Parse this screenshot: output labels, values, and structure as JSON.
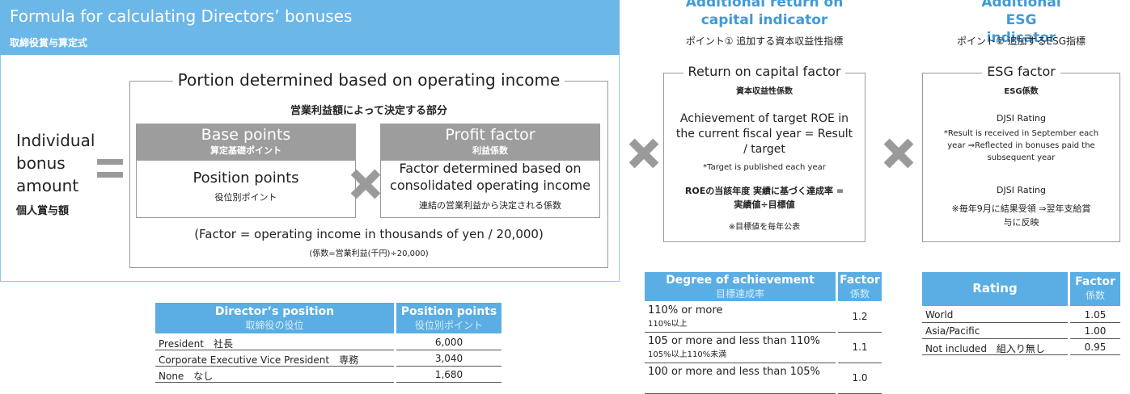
{
  "formula": {
    "title": "Formula for calculating Directors’ bonuses",
    "subtitle": "取締役賞与算定式",
    "left": {
      "label": "Individual bonus amount",
      "sublabel": "個人賞与額"
    },
    "portion": {
      "title": "Portion determined based on operating income",
      "subtitle": "営業利益額によって決定する部分",
      "base": {
        "title": "Base points",
        "subtitle": "算定基礎ポイント",
        "body": "Position points",
        "body_sub": "役位別ポイント"
      },
      "profit": {
        "title": "Profit factor",
        "subtitle": "利益係数",
        "body": "Factor determined based on consolidated operating income",
        "body_sub": "連結の営業利益から決定される係数"
      },
      "note": "(Factor = operating income in thousands of yen / 20,000)",
      "note_sub": "(係数=営業利益(千円)÷20,000)"
    }
  },
  "position_table": {
    "headers": [
      [
        "Director’s position",
        "取締役の役位"
      ],
      [
        "Position points",
        "役位別ポイント"
      ]
    ],
    "rows": [
      [
        "President　社長",
        "6,000"
      ],
      [
        "Corporate Executive Vice President　専務",
        "3,040"
      ],
      [
        "None　なし",
        "1,680"
      ]
    ]
  },
  "roc": {
    "heading": "Additional return on capital indicator",
    "point": "ポイント① 追加する資本収益性指標",
    "title": "Return on capital factor",
    "subtitle": "資本収益性係数",
    "text": "Achievement of target ROE in the current fiscal year = Result / target",
    "note": "*Target is published each year",
    "text_jp": "ROEの当該年度 実績に基づく達成率 = 実績値÷目標値",
    "note_jp": "※目標値を毎年公表"
  },
  "roc_table": {
    "headers": [
      [
        "Degree of achievement",
        "目標達成率"
      ],
      [
        "Factor",
        "係数"
      ]
    ],
    "rows": [
      [
        "110% or more",
        "110%以上",
        "1.2"
      ],
      [
        "105 or more and less than 110%",
        "105%以上110%未満",
        "1.1"
      ],
      [
        "100 or more and less than 105%",
        "",
        "1.0"
      ]
    ]
  },
  "esg": {
    "heading": "Additional ESG indicator",
    "point": "ポイント② 追加するESG指標",
    "title": "ESG factor",
    "subtitle": "ESG係数",
    "label": "DJSI Rating",
    "text": "*Result is received in September each year ⇒Reflected in bonuses paid the subsequent year",
    "label_jp": "DJSI Rating",
    "text_jp": "※毎年9月に結果受領 ⇒翌年支給賞与に反映"
  },
  "esg_table": {
    "headers": [
      [
        "Rating"
      ],
      [
        "Factor",
        "係数"
      ]
    ],
    "rows": [
      [
        "World",
        "1.05"
      ],
      [
        "Asia/Pacific",
        "1.00"
      ],
      [
        "Not included　組入り無し",
        "0.95"
      ]
    ]
  }
}
